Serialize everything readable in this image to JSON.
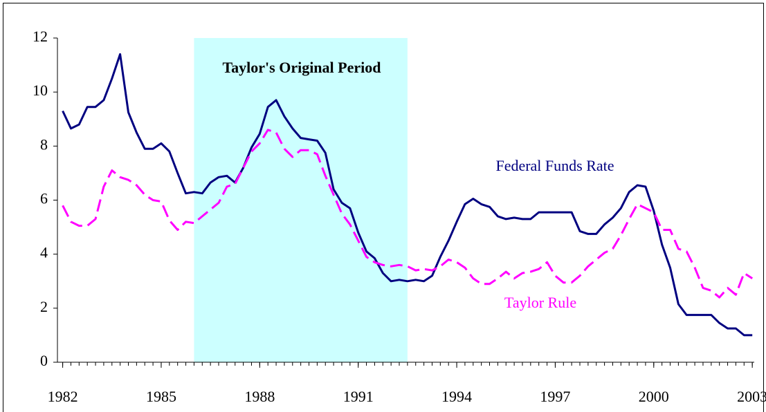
{
  "chart_data": {
    "type": "line",
    "annotations": {
      "period": "Taylor's Original Period",
      "ffr": "Federal Funds Rate",
      "taylor": "Taylor Rule"
    },
    "shade": [
      1986.0,
      1992.5
    ],
    "shade_color": "#ccffff",
    "x": [
      1982,
      1982.25,
      1982.5,
      1982.75,
      1983,
      1983.25,
      1983.5,
      1983.75,
      1984,
      1984.25,
      1984.5,
      1984.75,
      1985,
      1985.25,
      1985.5,
      1985.75,
      1986,
      1986.25,
      1986.5,
      1986.75,
      1987,
      1987.25,
      1987.5,
      1987.75,
      1988,
      1988.25,
      1988.5,
      1988.75,
      1989,
      1989.25,
      1989.5,
      1989.75,
      1990,
      1990.25,
      1990.5,
      1990.75,
      1991,
      1991.25,
      1991.5,
      1991.75,
      1992,
      1992.25,
      1992.5,
      1992.75,
      1993,
      1993.25,
      1993.5,
      1993.75,
      1994,
      1994.25,
      1994.5,
      1994.75,
      1995,
      1995.25,
      1995.5,
      1995.75,
      1996,
      1996.25,
      1996.5,
      1996.75,
      1997,
      1997.25,
      1997.5,
      1997.75,
      1998,
      1998.25,
      1998.5,
      1998.75,
      1999,
      1999.25,
      1999.5,
      1999.75,
      2000,
      2000.25,
      2000.5,
      2000.75,
      2001,
      2001.25,
      2001.5,
      2001.75,
      2002,
      2002.25,
      2002.5,
      2002.75,
      2003
    ],
    "series": [
      {
        "name": "Federal Funds Rate",
        "color": "#000080",
        "dash": false,
        "values": [
          9.3,
          8.65,
          8.8,
          9.45,
          9.45,
          9.7,
          10.5,
          11.4,
          9.25,
          8.5,
          7.9,
          7.9,
          8.1,
          7.8,
          7.0,
          6.25,
          6.3,
          6.25,
          6.65,
          6.85,
          6.9,
          6.65,
          7.2,
          7.95,
          8.45,
          9.45,
          9.7,
          9.1,
          8.65,
          8.3,
          8.25,
          8.2,
          7.75,
          6.4,
          5.9,
          5.7,
          4.8,
          4.1,
          3.85,
          3.3,
          3.0,
          3.05,
          3.0,
          3.05,
          3.0,
          3.2,
          3.9,
          4.5,
          5.2,
          5.85,
          6.05,
          5.85,
          5.75,
          5.4,
          5.3,
          5.35,
          5.3,
          5.3,
          5.55,
          5.55,
          5.55,
          5.55,
          5.55,
          4.85,
          4.75,
          4.75,
          5.1,
          5.35,
          5.7,
          6.3,
          6.55,
          6.5,
          5.6,
          4.35,
          3.5,
          2.15,
          1.75,
          1.75,
          1.75,
          1.75,
          1.45,
          1.25,
          1.25,
          1.0,
          1.0
        ]
      },
      {
        "name": "Taylor Rule",
        "color": "#ff00ff",
        "dash": true,
        "values": [
          5.8,
          5.2,
          5.05,
          5.05,
          5.3,
          6.5,
          7.1,
          6.85,
          6.75,
          6.55,
          6.2,
          6.0,
          5.95,
          5.25,
          4.9,
          5.2,
          5.15,
          5.4,
          5.65,
          5.9,
          6.5,
          6.6,
          7.2,
          7.8,
          8.1,
          8.6,
          8.5,
          7.9,
          7.6,
          7.85,
          7.85,
          7.7,
          6.9,
          6.2,
          5.5,
          5.1,
          4.5,
          3.9,
          3.7,
          3.6,
          3.55,
          3.6,
          3.55,
          3.4,
          3.45,
          3.4,
          3.55,
          3.8,
          3.7,
          3.5,
          3.1,
          2.9,
          2.9,
          3.1,
          3.35,
          3.1,
          3.3,
          3.35,
          3.45,
          3.7,
          3.2,
          2.95,
          2.95,
          3.2,
          3.55,
          3.8,
          4.05,
          4.2,
          4.7,
          5.3,
          5.85,
          5.7,
          5.55,
          4.9,
          4.9,
          4.2,
          4.1,
          3.5,
          2.75,
          2.65,
          2.4,
          2.75,
          2.5,
          3.3,
          3.1
        ]
      }
    ],
    "xlim": [
      1981.84,
      2003.06
    ],
    "xticks": [
      1982,
      1985,
      1988,
      1991,
      1994,
      1997,
      2000,
      2003
    ],
    "ylim": [
      0,
      12
    ],
    "yticks": [
      0,
      2,
      4,
      6,
      8,
      10,
      12
    ],
    "grid": false
  }
}
